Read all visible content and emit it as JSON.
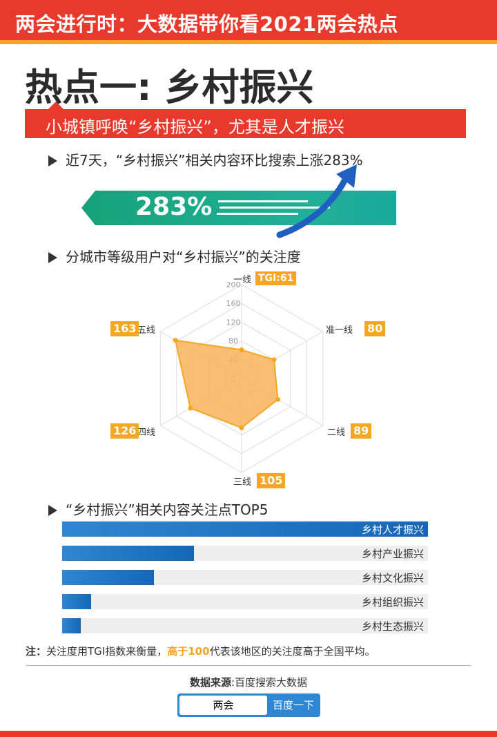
{
  "header": {
    "title": "两会进行时：大数据带你看2021两会热点"
  },
  "hot": {
    "title": "热点一: 乡村振兴",
    "banner": "小城镇呼唤“乡村振兴”，尤其是人才振兴"
  },
  "sections": {
    "s1": "近7天，“乡村振兴”相关内容环比搜索上涨283%",
    "s2": "分城市等级用户对“乡村振兴”的关注度",
    "s3": "“乡村振兴”相关内容关注点TOP5"
  },
  "growth": {
    "value": "283%"
  },
  "chart_data": [
    {
      "type": "radar",
      "title": "分城市等级用户对“乡村振兴”的关注度",
      "metric": "TGI",
      "rlim": [
        0,
        200
      ],
      "ticks": [
        "0",
        "40",
        "80",
        "120",
        "160",
        "200"
      ],
      "axes": [
        {
          "name": "一线",
          "value": 61,
          "badge": "TGI:61"
        },
        {
          "name": "准一线",
          "value": 80,
          "badge": "80"
        },
        {
          "name": "二线",
          "value": 89,
          "badge": "89"
        },
        {
          "name": "三线",
          "value": 105,
          "badge": "105"
        },
        {
          "name": "四线",
          "value": 126,
          "badge": "126"
        },
        {
          "name": "五线",
          "value": 163,
          "badge": "163"
        }
      ],
      "colors": {
        "fill": "#f8b35a",
        "stroke": "#f5a623"
      }
    },
    {
      "type": "bar",
      "orientation": "horizontal",
      "title": "“乡村振兴”相关内容关注点TOP5",
      "categories": [
        "乡村人才振兴",
        "乡村产业振兴",
        "乡村文化振兴",
        "乡村组织振兴",
        "乡村生态振兴"
      ],
      "values": [
        100,
        36,
        25,
        8,
        5
      ],
      "xlim": [
        0,
        100
      ]
    }
  ],
  "note": {
    "prefix": "注：",
    "text1": "关注度用TGI指数来衡量，",
    "highlight1": "高于",
    "highlight2": "100",
    "text2": "代表该地区的关注度高于全国平均。"
  },
  "source": {
    "label": "数据来源",
    "value": ":百度搜索大数据"
  },
  "search": {
    "query": "两会",
    "button": "百度一下"
  },
  "colors": {
    "red": "#e8392c",
    "orange": "#f5a623",
    "green": "#17a37a",
    "blue": "#1566b8"
  }
}
